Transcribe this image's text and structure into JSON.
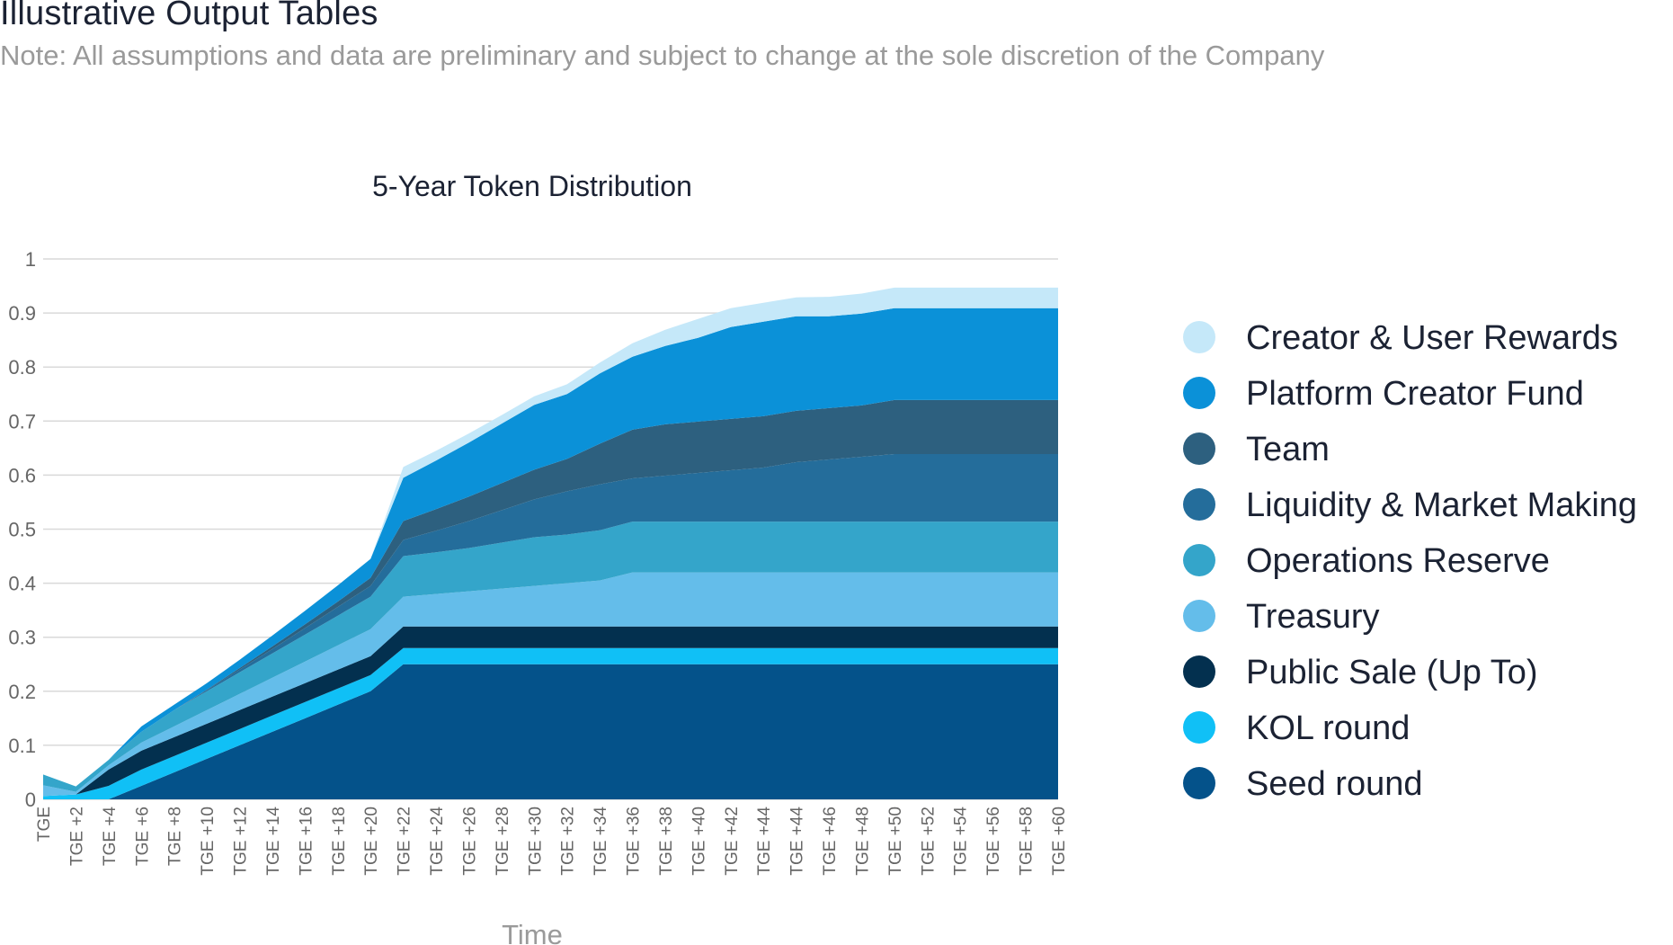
{
  "header": {
    "title": "Illustrative Output Tables",
    "note": "Note: All assumptions and data are preliminary and subject to change at the sole discretion of the Company"
  },
  "chart_data": {
    "type": "area",
    "stacked": true,
    "title": "5-Year Token Distribution",
    "xlabel": "Time",
    "ylabel": "",
    "ylim": [
      0,
      1
    ],
    "yticks": [
      0,
      0.1,
      0.2,
      0.3,
      0.4,
      0.5,
      0.6,
      0.7,
      0.8,
      0.9,
      1
    ],
    "grid": true,
    "legend_position": "right",
    "categories": [
      "TGE",
      "TGE +2",
      "TGE +4",
      "TGE +6",
      "TGE +8",
      "TGE +10",
      "TGE +12",
      "TGE +14",
      "TGE +16",
      "TGE +18",
      "TGE +20",
      "TGE +22",
      "TGE +24",
      "TGE +26",
      "TGE +28",
      "TGE +30",
      "TGE +32",
      "TGE +34",
      "TGE +36",
      "TGE +38",
      "TGE +40",
      "TGE +42",
      "TGE +44",
      "TGE +44",
      "TGE +46",
      "TGE +48",
      "TGE +50",
      "TGE +52",
      "TGE +54",
      "TGE +56",
      "TGE +58",
      "TGE +60"
    ],
    "series": [
      {
        "name": "Seed round",
        "color": "#04528a",
        "values": [
          0,
          0,
          0,
          0.025,
          0.05,
          0.075,
          0.1,
          0.125,
          0.15,
          0.175,
          0.2,
          0.25,
          0.25,
          0.25,
          0.25,
          0.25,
          0.25,
          0.25,
          0.25,
          0.25,
          0.25,
          0.25,
          0.25,
          0.25,
          0.25,
          0.25,
          0.25,
          0.25,
          0.25,
          0.25,
          0.25,
          0.25
        ]
      },
      {
        "name": "KOL round",
        "color": "#10c0f6",
        "values": [
          0.006,
          0.009,
          0.025,
          0.03,
          0.03,
          0.03,
          0.03,
          0.03,
          0.03,
          0.03,
          0.03,
          0.03,
          0.03,
          0.03,
          0.03,
          0.03,
          0.03,
          0.03,
          0.03,
          0.03,
          0.03,
          0.03,
          0.03,
          0.03,
          0.03,
          0.03,
          0.03,
          0.03,
          0.03,
          0.03,
          0.03,
          0.03
        ]
      },
      {
        "name": "Public Sale (Up To)",
        "color": "#03304f",
        "values": [
          0,
          0,
          0.03,
          0.035,
          0.035,
          0.035,
          0.035,
          0.035,
          0.035,
          0.035,
          0.035,
          0.04,
          0.04,
          0.04,
          0.04,
          0.04,
          0.04,
          0.04,
          0.04,
          0.04,
          0.04,
          0.04,
          0.04,
          0.04,
          0.04,
          0.04,
          0.04,
          0.04,
          0.04,
          0.04,
          0.04,
          0.04
        ]
      },
      {
        "name": "Treasury",
        "color": "#64bdea",
        "values": [
          0.02,
          0.005,
          0.008,
          0.015,
          0.02,
          0.025,
          0.03,
          0.035,
          0.04,
          0.045,
          0.05,
          0.055,
          0.06,
          0.065,
          0.07,
          0.075,
          0.08,
          0.085,
          0.1,
          0.1,
          0.1,
          0.1,
          0.1,
          0.1,
          0.1,
          0.1,
          0.1,
          0.1,
          0.1,
          0.1,
          0.1,
          0.1
        ]
      },
      {
        "name": "Operations Reserve",
        "color": "#34a5ca",
        "values": [
          0.02,
          0.01,
          0.01,
          0.02,
          0.03,
          0.035,
          0.04,
          0.045,
          0.05,
          0.055,
          0.06,
          0.075,
          0.077,
          0.08,
          0.085,
          0.09,
          0.09,
          0.093,
          0.094,
          0.094,
          0.094,
          0.094,
          0.094,
          0.094,
          0.094,
          0.094,
          0.094,
          0.094,
          0.094,
          0.094,
          0.094,
          0.094
        ]
      },
      {
        "name": "Liquidity & Market Making",
        "color": "#246d9b",
        "values": [
          0,
          0,
          0,
          0,
          0,
          0.002,
          0.005,
          0.008,
          0.012,
          0.016,
          0.02,
          0.03,
          0.04,
          0.05,
          0.06,
          0.07,
          0.08,
          0.085,
          0.08,
          0.085,
          0.09,
          0.095,
          0.1,
          0.11,
          0.115,
          0.12,
          0.125,
          0.125,
          0.125,
          0.125,
          0.125,
          0.125
        ]
      },
      {
        "name": "Team",
        "color": "#2d607f",
        "values": [
          0,
          0,
          0,
          0,
          0,
          0.001,
          0.003,
          0.005,
          0.007,
          0.01,
          0.015,
          0.035,
          0.04,
          0.045,
          0.05,
          0.055,
          0.06,
          0.075,
          0.09,
          0.095,
          0.095,
          0.095,
          0.095,
          0.095,
          0.095,
          0.095,
          0.1,
          0.1,
          0.1,
          0.1,
          0.1,
          0.1
        ]
      },
      {
        "name": "Platform Creator Fund",
        "color": "#0b91d8",
        "values": [
          0,
          0,
          0,
          0.01,
          0.01,
          0.012,
          0.015,
          0.02,
          0.025,
          0.03,
          0.035,
          0.08,
          0.09,
          0.1,
          0.11,
          0.12,
          0.12,
          0.13,
          0.135,
          0.145,
          0.155,
          0.17,
          0.175,
          0.175,
          0.17,
          0.17,
          0.17,
          0.17,
          0.17,
          0.17,
          0.17,
          0.17
        ]
      },
      {
        "name": "Creator & User Rewards",
        "color": "#c5e8f9",
        "values": [
          0,
          0,
          0,
          0,
          0,
          0,
          0,
          0,
          0,
          0,
          0,
          0.02,
          0.018,
          0.017,
          0.016,
          0.016,
          0.018,
          0.02,
          0.025,
          0.03,
          0.035,
          0.035,
          0.035,
          0.035,
          0.036,
          0.037,
          0.038,
          0.038,
          0.038,
          0.038,
          0.038,
          0.038
        ]
      }
    ],
    "legend_order": [
      "Creator & User Rewards",
      "Platform Creator Fund",
      "Team",
      "Liquidity & Market Making",
      "Operations Reserve",
      "Treasury",
      "Public Sale (Up To)",
      "KOL round",
      "Seed round"
    ]
  }
}
